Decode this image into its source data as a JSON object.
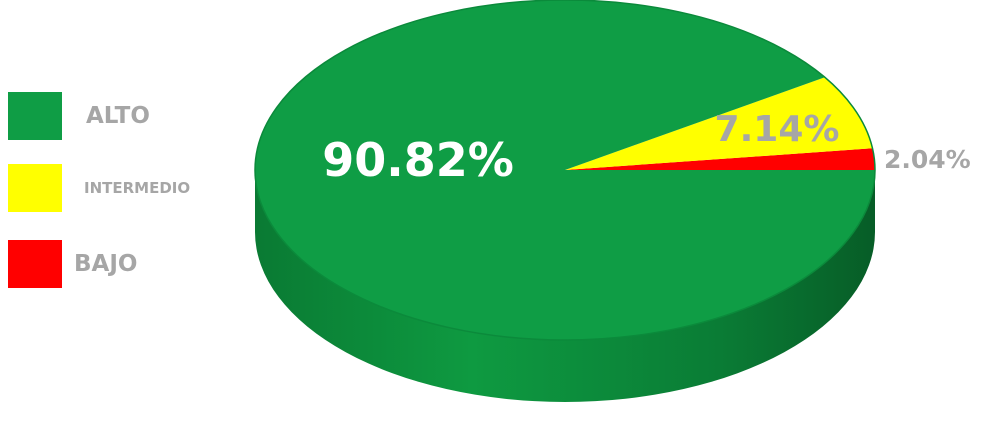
{
  "chart_data": {
    "type": "pie",
    "style": "3d",
    "categories": [
      "ALTO",
      "INTERMEDIO",
      "BAJO"
    ],
    "values": [
      90.82,
      7.14,
      2.04
    ],
    "labels": [
      "90.82%",
      "7.14%",
      "2.04%"
    ],
    "colors": [
      "#0f9d45",
      "#ffff00",
      "#ff0000"
    ],
    "legend": "left",
    "title": ""
  }
}
